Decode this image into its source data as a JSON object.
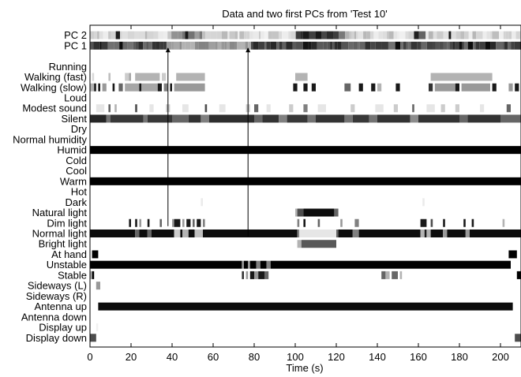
{
  "chart_data": {
    "type": "heatmap",
    "title": "Data and two first PCs from 'Test 10'",
    "xlabel": "Time (s)",
    "ylabel": "",
    "xlim": [
      0,
      210
    ],
    "xticks": [
      0,
      20,
      40,
      60,
      80,
      100,
      120,
      140,
      160,
      180,
      200
    ],
    "grid": false,
    "colormap": "gray (1 = black, 0 = white)",
    "rows": [
      {
        "label": "PC 2",
        "kind": "pc"
      },
      {
        "label": "PC 1",
        "kind": "pc"
      },
      {
        "label": "",
        "kind": "spacer"
      },
      {
        "label": "Running",
        "segments": []
      },
      {
        "label": "Walking (fast)",
        "segments": [
          [
            1,
            2,
            0.15
          ],
          [
            9,
            10,
            0.25
          ],
          [
            17,
            19,
            0.2
          ],
          [
            19,
            20,
            0.35
          ],
          [
            22,
            34,
            0.3
          ],
          [
            35,
            37,
            0.2
          ],
          [
            42,
            56,
            0.3
          ],
          [
            100,
            106,
            0.3
          ],
          [
            166,
            196,
            0.3
          ]
        ]
      },
      {
        "label": "Walking (slow)",
        "segments": [
          [
            0,
            2,
            0.3
          ],
          [
            2,
            3,
            0.9
          ],
          [
            4,
            5,
            0.9
          ],
          [
            6,
            8,
            0.4
          ],
          [
            11,
            12,
            0.9
          ],
          [
            14,
            16,
            0.6
          ],
          [
            17,
            24,
            0.35
          ],
          [
            24,
            25,
            0.9
          ],
          [
            25,
            33,
            0.35
          ],
          [
            33,
            35,
            0.9
          ],
          [
            36,
            38,
            0.5
          ],
          [
            39,
            40,
            0.9
          ],
          [
            41,
            56,
            0.4
          ],
          [
            99,
            101,
            0.9
          ],
          [
            104,
            106,
            0.9
          ],
          [
            108,
            110,
            0.9
          ],
          [
            124,
            127,
            0.6
          ],
          [
            131,
            133,
            0.9
          ],
          [
            137,
            139,
            0.9
          ],
          [
            140,
            142,
            0.3
          ],
          [
            149,
            151,
            0.9
          ],
          [
            165,
            167,
            0.8
          ],
          [
            168,
            178,
            0.4
          ],
          [
            178,
            180,
            0.9
          ],
          [
            181,
            195,
            0.4
          ],
          [
            196,
            198,
            0.9
          ],
          [
            204,
            206,
            0.4
          ],
          [
            207,
            209,
            0.9
          ]
        ]
      },
      {
        "label": "Loud",
        "segments": []
      },
      {
        "label": "Modest sound",
        "segments": [
          [
            3,
            7,
            0.1
          ],
          [
            9,
            10,
            0.6
          ],
          [
            12,
            13,
            0.3
          ],
          [
            22,
            23,
            0.7
          ],
          [
            29,
            31,
            0.1
          ],
          [
            37,
            39,
            0.2
          ],
          [
            45,
            48,
            0.1
          ],
          [
            56,
            57,
            0.7
          ],
          [
            63,
            66,
            0.1
          ],
          [
            76,
            78,
            0.2
          ],
          [
            80,
            82,
            0.6
          ],
          [
            86,
            88,
            0.1
          ],
          [
            97,
            99,
            0.2
          ],
          [
            104,
            106,
            0.5
          ],
          [
            111,
            115,
            0.1
          ],
          [
            127,
            129,
            0.2
          ],
          [
            139,
            143,
            0.1
          ],
          [
            148,
            150,
            0.2
          ],
          [
            157,
            158,
            0.6
          ],
          [
            164,
            168,
            0.1
          ],
          [
            171,
            173,
            0.2
          ],
          [
            178,
            180,
            0.2
          ],
          [
            190,
            192,
            0.1
          ],
          [
            203,
            205,
            0.6
          ]
        ]
      },
      {
        "label": "Silent",
        "segments": [
          [
            0,
            8,
            0.85
          ],
          [
            8,
            10,
            0.55
          ],
          [
            10,
            26,
            0.78
          ],
          [
            26,
            28,
            0.55
          ],
          [
            28,
            40,
            0.78
          ],
          [
            40,
            48,
            0.6
          ],
          [
            48,
            54,
            0.8
          ],
          [
            54,
            58,
            0.5
          ],
          [
            58,
            80,
            0.82
          ],
          [
            80,
            84,
            0.6
          ],
          [
            84,
            92,
            0.8
          ],
          [
            92,
            96,
            0.5
          ],
          [
            96,
            106,
            0.78
          ],
          [
            106,
            110,
            0.55
          ],
          [
            110,
            124,
            0.8
          ],
          [
            124,
            128,
            0.55
          ],
          [
            128,
            136,
            0.78
          ],
          [
            136,
            140,
            0.55
          ],
          [
            140,
            156,
            0.8
          ],
          [
            156,
            160,
            0.45
          ],
          [
            160,
            180,
            0.8
          ],
          [
            180,
            184,
            0.6
          ],
          [
            184,
            200,
            0.8
          ],
          [
            200,
            210,
            0.6
          ]
        ]
      },
      {
        "label": "Dry",
        "segments": []
      },
      {
        "label": "Normal humidity",
        "segments": []
      },
      {
        "label": "Humid",
        "segments": [
          [
            0,
            210,
            1
          ]
        ]
      },
      {
        "label": "Cold",
        "segments": []
      },
      {
        "label": "Cool",
        "segments": []
      },
      {
        "label": "Warm",
        "segments": [
          [
            0,
            210,
            1
          ]
        ]
      },
      {
        "label": "Hot",
        "segments": []
      },
      {
        "label": "Dark",
        "segments": [
          [
            54,
            55,
            0.08
          ],
          [
            162,
            163,
            0.08
          ]
        ]
      },
      {
        "label": "Natural light",
        "segments": [
          [
            100,
            101,
            0.3
          ],
          [
            101,
            104,
            0.7
          ],
          [
            104,
            119,
            0.95
          ],
          [
            119,
            121,
            0.6
          ]
        ]
      },
      {
        "label": "Dim light",
        "segments": [
          [
            19,
            20,
            0.9
          ],
          [
            22,
            23,
            0.9
          ],
          [
            24,
            25,
            0.4
          ],
          [
            28,
            29,
            0.9
          ],
          [
            34,
            35,
            0.6
          ],
          [
            40,
            41,
            0.4
          ],
          [
            41,
            44,
            0.9
          ],
          [
            45,
            46,
            0.4
          ],
          [
            47,
            49,
            0.9
          ],
          [
            50,
            51,
            0.6
          ],
          [
            52,
            54,
            0.9
          ],
          [
            55,
            56,
            0.5
          ],
          [
            101,
            102,
            0.5
          ],
          [
            104,
            105,
            0.9
          ],
          [
            111,
            112,
            0.6
          ],
          [
            122,
            123,
            0.4
          ],
          [
            129,
            131,
            0.5
          ],
          [
            161,
            164,
            0.9
          ],
          [
            166,
            167,
            0.7
          ],
          [
            172,
            173,
            0.9
          ],
          [
            182,
            183,
            0.9
          ],
          [
            186,
            187,
            0.9
          ],
          [
            201,
            202,
            0.3
          ]
        ]
      },
      {
        "label": "Normal light",
        "segments": [
          [
            0,
            22,
            0.95
          ],
          [
            22,
            24,
            0.6
          ],
          [
            24,
            28,
            0.95
          ],
          [
            28,
            30,
            0.6
          ],
          [
            30,
            41,
            0.95
          ],
          [
            41,
            44,
            0.2
          ],
          [
            44,
            45,
            0.95
          ],
          [
            45,
            48,
            0.3
          ],
          [
            48,
            51,
            0.95
          ],
          [
            51,
            55,
            0.25
          ],
          [
            55,
            101,
            0.95
          ],
          [
            101,
            102,
            0.5
          ],
          [
            102,
            120,
            0.1
          ],
          [
            120,
            121,
            0.6
          ],
          [
            121,
            128,
            0.95
          ],
          [
            128,
            131,
            0.5
          ],
          [
            131,
            161,
            0.95
          ],
          [
            161,
            163,
            0.3
          ],
          [
            163,
            164,
            0.9
          ],
          [
            164,
            166,
            0.3
          ],
          [
            166,
            172,
            0.95
          ],
          [
            172,
            174,
            0.4
          ],
          [
            174,
            183,
            0.95
          ],
          [
            183,
            185,
            0.4
          ],
          [
            185,
            210,
            0.95
          ]
        ]
      },
      {
        "label": "Bright light",
        "segments": [
          [
            101,
            103,
            0.3
          ],
          [
            103,
            120,
            0.65
          ]
        ]
      },
      {
        "label": "At hand",
        "segments": [
          [
            1,
            4,
            1
          ],
          [
            204,
            208,
            1
          ]
        ]
      },
      {
        "label": "Unstable",
        "segments": [
          [
            0,
            74,
            1
          ],
          [
            74,
            75,
            0.4
          ],
          [
            75,
            77,
            1
          ],
          [
            77,
            78,
            0.4
          ],
          [
            78,
            81,
            1
          ],
          [
            81,
            83,
            0.5
          ],
          [
            83,
            86,
            1
          ],
          [
            86,
            88,
            0.5
          ],
          [
            88,
            205,
            1
          ]
        ]
      },
      {
        "label": "Stable",
        "segments": [
          [
            0,
            1,
            0.3
          ],
          [
            1,
            2,
            1
          ],
          [
            74,
            75,
            0.8
          ],
          [
            76,
            77,
            0.4
          ],
          [
            78,
            80,
            0.9
          ],
          [
            80,
            82,
            0.4
          ],
          [
            82,
            85,
            0.9
          ],
          [
            85,
            87,
            0.6
          ],
          [
            142,
            144,
            0.6
          ],
          [
            144,
            146,
            0.3
          ],
          [
            147,
            150,
            0.6
          ],
          [
            151,
            152,
            0.3
          ],
          [
            208,
            210,
            1
          ]
        ]
      },
      {
        "label": "Sideways (L)",
        "segments": [
          [
            3,
            5,
            0.4
          ]
        ]
      },
      {
        "label": "Sideways (R)",
        "segments": []
      },
      {
        "label": "Antenna up",
        "segments": [
          [
            4,
            206,
            0.95
          ]
        ]
      },
      {
        "label": "Antenna down",
        "segments": []
      },
      {
        "label": "Display up",
        "segments": [
          [
            3,
            4,
            0.05
          ]
        ]
      },
      {
        "label": "Display down",
        "segments": [
          [
            0,
            3,
            0.7
          ],
          [
            207,
            210,
            0.7
          ]
        ]
      }
    ],
    "annotations": [
      {
        "type": "arrow",
        "from": [
          "PC 1",
          38
        ],
        "to_row": "Dim light"
      },
      {
        "type": "arrow",
        "from": [
          "PC 1",
          77
        ],
        "to_row": "Normal light"
      }
    ]
  }
}
